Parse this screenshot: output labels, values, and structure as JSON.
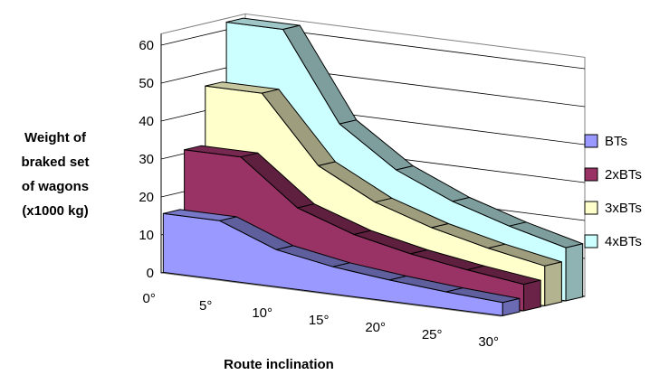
{
  "chart_data": {
    "type": "area",
    "three_d": true,
    "title": "",
    "ylabel_lines": [
      "Weight of",
      "braked set",
      "of wagons",
      "(x1000 kg)"
    ],
    "xlabel": "Route inclination",
    "y_ticks": [
      "0",
      "10",
      "20",
      "30",
      "40",
      "50",
      "60"
    ],
    "ylim": [
      0,
      60
    ],
    "x_ticks": [
      "0°",
      "5°",
      "10°",
      "15°",
      "20°",
      "25°",
      "30°"
    ],
    "grid": "horizontal",
    "legend_position": "right",
    "series": [
      {
        "name": "BTs",
        "color": "#9999ff",
        "values": [
          15.5,
          15.5,
          9.8,
          7.2,
          5.6,
          4.4,
          3.5
        ]
      },
      {
        "name": "2xBTs",
        "color": "#993366",
        "values": [
          31,
          31,
          19.5,
          14.4,
          11.2,
          8.9,
          7
        ]
      },
      {
        "name": "3xBTs",
        "color": "#ffffcc",
        "values": [
          46.5,
          46.5,
          29.3,
          21.6,
          16.8,
          13.3,
          10.5
        ]
      },
      {
        "name": "4xBTs",
        "color": "#ccffff",
        "values": [
          62,
          62,
          39,
          28.8,
          22.4,
          17.8,
          14
        ]
      }
    ]
  }
}
